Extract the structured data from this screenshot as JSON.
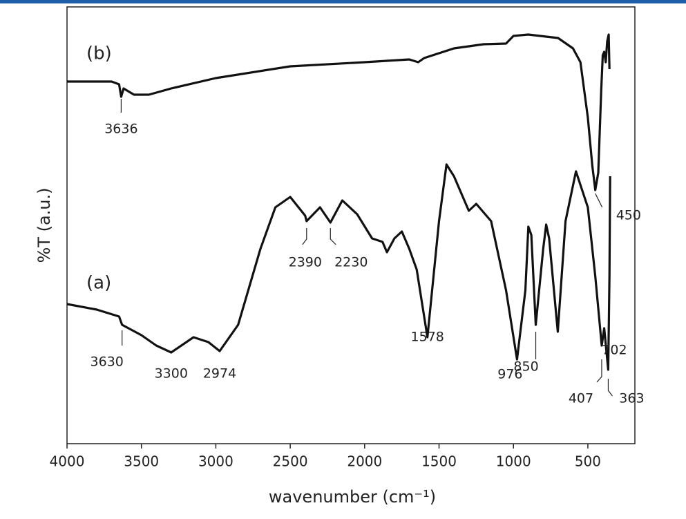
{
  "chart_data": {
    "type": "line",
    "xlabel": "wavenumber (cm⁻¹)",
    "ylabel": "%T (a.u.)",
    "xlim": [
      4000,
      184
    ],
    "ylim": [
      0,
      632
    ],
    "xticks": [
      4000,
      3500,
      3000,
      2500,
      2000,
      1500,
      1000,
      500
    ],
    "series": [
      {
        "name": "(a)",
        "color": "#111111",
        "x": [
          4000,
          3800,
          3650,
          3630,
          3500,
          3400,
          3300,
          3150,
          3050,
          2974,
          2850,
          2700,
          2600,
          2500,
          2400,
          2390,
          2300,
          2230,
          2150,
          2050,
          1950,
          1880,
          1850,
          1800,
          1750,
          1700,
          1650,
          1578,
          1500,
          1450,
          1400,
          1300,
          1250,
          1150,
          1050,
          976,
          920,
          900,
          880,
          850,
          800,
          780,
          760,
          702,
          650,
          580,
          500,
          450,
          407,
          390,
          363,
          355,
          350
        ],
        "values": [
          202,
          194,
          184,
          172,
          157,
          142,
          132,
          154,
          147,
          134,
          172,
          282,
          342,
          357,
          330,
          322,
          342,
          320,
          352,
          332,
          297,
          292,
          277,
          297,
          307,
          282,
          252,
          154,
          322,
          404,
          387,
          337,
          347,
          322,
          222,
          122,
          222,
          314,
          302,
          172,
          282,
          317,
          297,
          162,
          322,
          394,
          342,
          242,
          142,
          167,
          107,
          242,
          387
        ]
      },
      {
        "name": "(b)",
        "color": "#111111",
        "x": [
          4000,
          3700,
          3650,
          3636,
          3620,
          3550,
          3450,
          3300,
          3000,
          2500,
          2000,
          1700,
          1640,
          1600,
          1400,
          1200,
          1050,
          1000,
          900,
          700,
          600,
          550,
          500,
          470,
          450,
          430,
          410,
          400,
          390,
          380,
          370,
          360,
          355
        ],
        "values": [
          524,
          524,
          520,
          502,
          514,
          505,
          505,
          514,
          529,
          546,
          552,
          556,
          552,
          558,
          572,
          578,
          579,
          590,
          592,
          587,
          572,
          552,
          472,
          402,
          367,
          392,
          512,
          562,
          567,
          552,
          582,
          592,
          542
        ]
      }
    ],
    "annotations": [
      3636,
      450,
      3630,
      3300,
      2974,
      2390,
      2230,
      1578,
      976,
      850,
      702,
      407,
      363
    ]
  }
}
